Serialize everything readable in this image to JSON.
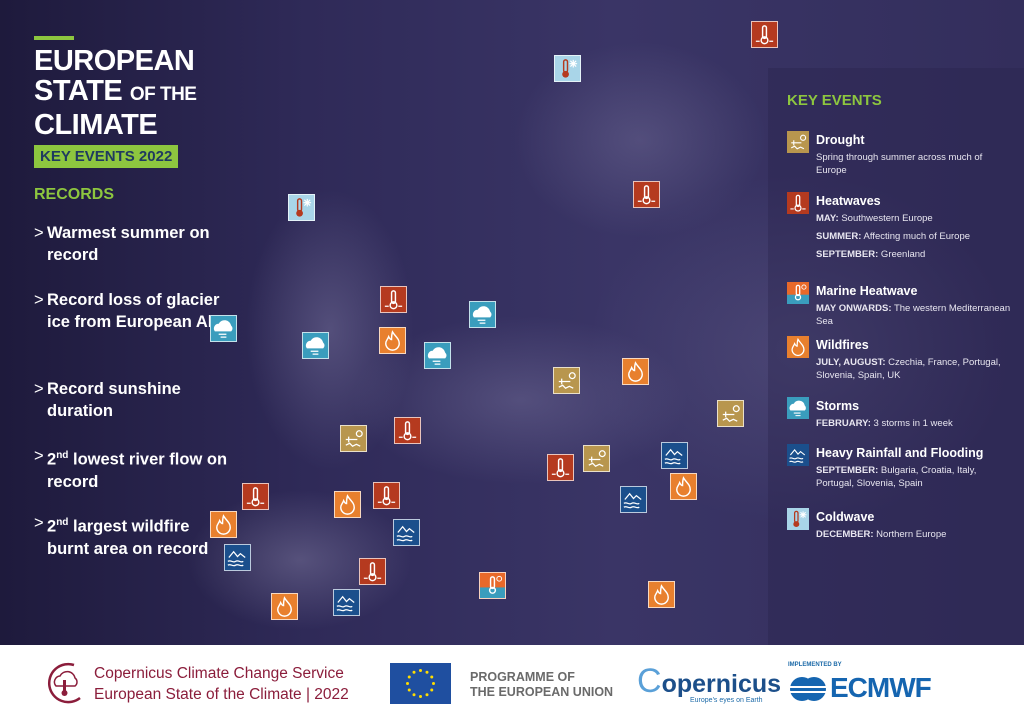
{
  "header": {
    "title_line1": "EUROPEAN",
    "title_line2a": "STATE ",
    "title_line2b": "OF THE",
    "title_line3": "CLIMATE",
    "badge": "KEY EVENTS 2022"
  },
  "records": {
    "heading": "RECORDS",
    "items": [
      {
        "text": "Warmest summer on record"
      },
      {
        "text": "Record loss of glacier ice from European Alps"
      },
      {
        "text": "Record sunshine duration"
      },
      {
        "pre": "2",
        "sup": "nd",
        "text": " lowest river flow on record"
      },
      {
        "pre": "2",
        "sup": "nd",
        "text": " largest wildfire burnt area on record"
      }
    ]
  },
  "key_events": {
    "heading": "KEY EVENTS",
    "items": [
      {
        "type": "drought",
        "name": "Drought",
        "lines": [
          {
            "label": "",
            "text": "Spring through summer across much of Europe"
          }
        ]
      },
      {
        "type": "heat",
        "name": "Heatwaves",
        "lines": [
          {
            "label": "MAY:",
            "text": " Southwestern Europe"
          },
          {
            "label": "SUMMER:",
            "text": " Affecting much of Europe"
          },
          {
            "label": "SEPTEMBER:",
            "text": " Greenland"
          }
        ]
      },
      {
        "type": "marine",
        "name": "Marine Heatwave",
        "lines": [
          {
            "label": "MAY ONWARDS:",
            "text": " The western Mediterranean Sea"
          }
        ]
      },
      {
        "type": "fire",
        "name": "Wildfires",
        "lines": [
          {
            "label": "JULY, AUGUST:",
            "text": " Czechia, France, Portugal, Slovenia, Spain, UK"
          }
        ]
      },
      {
        "type": "storm",
        "name": "Storms",
        "lines": [
          {
            "label": "FEBRUARY:",
            "text": " 3 storms in 1 week"
          }
        ]
      },
      {
        "type": "flood",
        "name": "Heavy Rainfall and Flooding",
        "lines": [
          {
            "label": "SEPTEMBER:",
            "text": " Bulgaria, Croatia, Italy, Portugal, Slovenia, Spain"
          }
        ]
      },
      {
        "type": "cold",
        "name": "Coldwave",
        "lines": [
          {
            "label": "DECEMBER:",
            "text": " Northern Europe"
          }
        ]
      }
    ]
  },
  "colors": {
    "drought": "#b8964e",
    "heat": "#b53a1f",
    "marine": "#e8692a",
    "fire": "#e8802e",
    "storm": "#3a9dbd",
    "flood": "#1b4f8c",
    "cold": "#a9d5e8",
    "accent": "#8dc63f"
  },
  "icons": {
    "drought": "cracked-ground-sun-icon",
    "heat": "thermometer-icon",
    "marine": "thermometer-sea-icon",
    "fire": "flame-icon",
    "storm": "cloud-wind-icon",
    "flood": "rain-flood-icon",
    "cold": "thermometer-snowflake-icon"
  },
  "map_markers": [
    "heat",
    "cold",
    "heat",
    "cold",
    "heat",
    "storm",
    "storm",
    "storm",
    "fire",
    "storm",
    "fire",
    "drought",
    "drought",
    "heat",
    "drought",
    "heat",
    "drought",
    "flood",
    "fire",
    "flood",
    "heat",
    "fire",
    "heat",
    "flood",
    "fire",
    "flood",
    "heat",
    "marine",
    "flood",
    "fire",
    "fire"
  ],
  "footer": {
    "c3s_line1": "Copernicus Climate Change Service",
    "c3s_line2": "European State of the Climate | 2022",
    "programme_line1": "PROGRAMME OF",
    "programme_line2": "THE EUROPEAN UNION",
    "copernicus": "opernicus",
    "copernicus_c": "C",
    "copernicus_tagline": "Europe's eyes on Earth",
    "implemented_by": "IMPLEMENTED BY",
    "ecmwf": "ECMWF"
  }
}
